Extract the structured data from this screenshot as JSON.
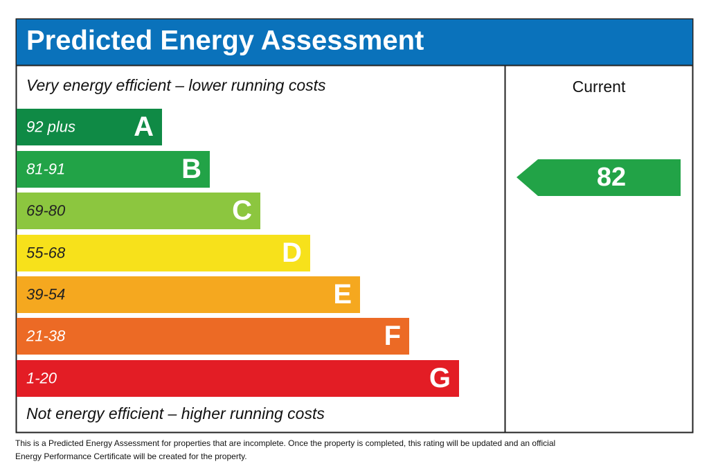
{
  "header": {
    "title": "Predicted Energy Assessment"
  },
  "top_label": "Very energy efficient – lower running costs",
  "bottom_label": "Not energy efficient – higher running costs",
  "bands": [
    {
      "range": "92 plus",
      "letter": "A",
      "color": "#0f8a45"
    },
    {
      "range": "81-91",
      "letter": "B",
      "color": "#22a347"
    },
    {
      "range": "69-80",
      "letter": "C",
      "color": "#8cc63f"
    },
    {
      "range": "55-68",
      "letter": "D",
      "color": "#f7e11b"
    },
    {
      "range": "39-54",
      "letter": "E",
      "color": "#f5a81f"
    },
    {
      "range": "21-38",
      "letter": "F",
      "color": "#ec6a25"
    },
    {
      "range": "1-20",
      "letter": "G",
      "color": "#e31d25"
    }
  ],
  "current": {
    "label": "Current",
    "value": "82",
    "color": "#22a347"
  },
  "footer": "This is a Predicted Energy Assessment for properties that are incomplete. Once the property is completed, this rating will be updated and an official Energy Performance Certificate will be created for the property."
}
